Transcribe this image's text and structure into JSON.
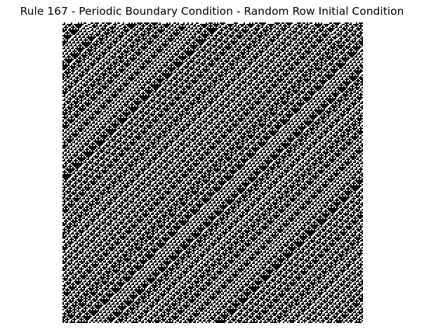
{
  "figure": {
    "title": "Rule 167 - Periodic Boundary Condition - Random Row Initial Condition"
  },
  "automaton": {
    "rule": 167,
    "boundary": "periodic",
    "initial_condition": "random row",
    "colors": {
      "on": "#000000",
      "off": "#ffffff"
    }
  }
}
